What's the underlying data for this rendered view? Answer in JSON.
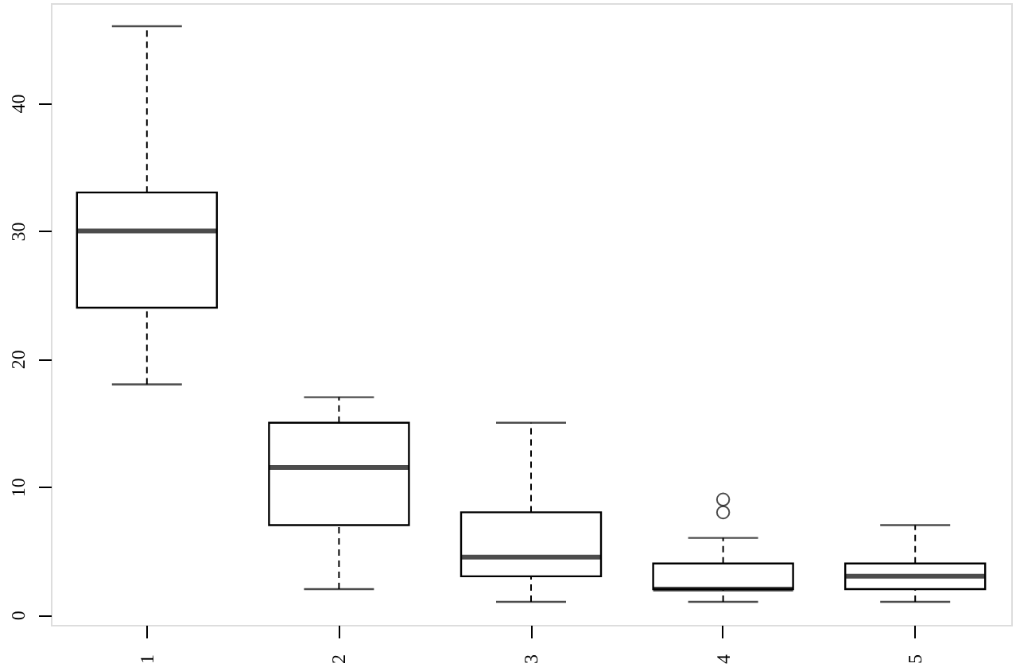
{
  "chart_data": {
    "type": "box",
    "categories": [
      "1",
      "2",
      "3",
      "4",
      "5"
    ],
    "boxes": [
      {
        "low": 18,
        "q1": 24,
        "median": 30,
        "q3": 33,
        "high": 46
      },
      {
        "low": 2,
        "q1": 7,
        "median": 11.5,
        "q3": 15,
        "high": 17
      },
      {
        "low": 1,
        "q1": 3,
        "median": 4.5,
        "q3": 8,
        "high": 15
      },
      {
        "low": 1,
        "q1": 2,
        "median": 2,
        "q3": 4,
        "high": 6,
        "outliers": [
          8,
          9
        ]
      },
      {
        "low": 1,
        "q1": 2,
        "median": 3,
        "q3": 4,
        "high": 7
      }
    ],
    "ylim": [
      -0.8,
      47.8
    ],
    "yticks": [
      0,
      10,
      20,
      30,
      40
    ]
  }
}
